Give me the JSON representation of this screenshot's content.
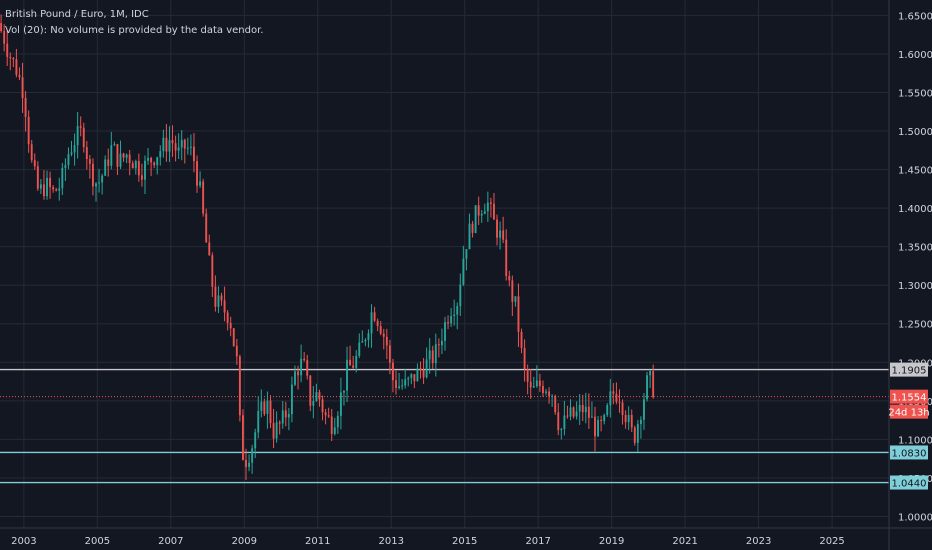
{
  "header": {
    "title": "British Pound / Euro, 1M, IDC",
    "volume_note": "Vol (20): No volume is provided by the data vendor."
  },
  "colors": {
    "background": "#131722",
    "grid": "#262a36",
    "text": "#d1d4dc",
    "up": "#26a69a",
    "down": "#ef5350",
    "line_white": "#c8c8cc",
    "line_cyan": "#7fcfd8",
    "price_line": "#ef5350"
  },
  "price_labels": {
    "resistance": "1.1905",
    "current": "1.1554",
    "countdown": "24d 13h",
    "support_1": "1.0830",
    "support_2": "1.0440"
  },
  "chart_data": {
    "type": "candlestick",
    "title": "British Pound / Euro, 1M, IDC",
    "x_range": [
      2002.35,
      2026.55
    ],
    "ylim": [
      0.985,
      1.67
    ],
    "x_ticks": [
      {
        "value": 2003,
        "label": "2003"
      },
      {
        "value": 2005,
        "label": "2005"
      },
      {
        "value": 2007,
        "label": "2007"
      },
      {
        "value": 2009,
        "label": "2009"
      },
      {
        "value": 2011,
        "label": "2011"
      },
      {
        "value": 2013,
        "label": "2013"
      },
      {
        "value": 2015,
        "label": "2015"
      },
      {
        "value": 2017,
        "label": "2017"
      },
      {
        "value": 2019,
        "label": "2019"
      },
      {
        "value": 2021,
        "label": "2021"
      },
      {
        "value": 2023,
        "label": "2023"
      },
      {
        "value": 2025,
        "label": "2025"
      }
    ],
    "y_ticks": [
      {
        "value": 1.0,
        "label": "1.0000"
      },
      {
        "value": 1.05,
        "label": "1.0500"
      },
      {
        "value": 1.1,
        "label": "1.1000"
      },
      {
        "value": 1.15,
        "label": "1.1500"
      },
      {
        "value": 1.2,
        "label": "1.2000"
      },
      {
        "value": 1.25,
        "label": "1.2500"
      },
      {
        "value": 1.3,
        "label": "1.3000"
      },
      {
        "value": 1.35,
        "label": "1.3500"
      },
      {
        "value": 1.4,
        "label": "1.4000"
      },
      {
        "value": 1.45,
        "label": "1.4500"
      },
      {
        "value": 1.5,
        "label": "1.5000"
      },
      {
        "value": 1.55,
        "label": "1.5500"
      },
      {
        "value": 1.6,
        "label": "1.6000"
      },
      {
        "value": 1.65,
        "label": "1.6500"
      }
    ],
    "horizontal_lines": [
      {
        "value": 1.1905,
        "style": "solid",
        "color": "#c8c8cc"
      },
      {
        "value": 1.1554,
        "style": "dotted",
        "color": "#ef5350"
      },
      {
        "value": 1.083,
        "style": "solid",
        "color": "#7fcfd8"
      },
      {
        "value": 1.044,
        "style": "solid",
        "color": "#7fcfd8"
      }
    ],
    "anchor_closes": [
      [
        2002.4,
        1.63
      ],
      [
        2002.6,
        1.6
      ],
      [
        2002.8,
        1.58
      ],
      [
        2003.0,
        1.55
      ],
      [
        2003.2,
        1.46
      ],
      [
        2003.4,
        1.42
      ],
      [
        2003.6,
        1.43
      ],
      [
        2003.8,
        1.42
      ],
      [
        2004.0,
        1.43
      ],
      [
        2004.2,
        1.47
      ],
      [
        2004.4,
        1.49
      ],
      [
        2004.6,
        1.5
      ],
      [
        2004.8,
        1.45
      ],
      [
        2005.0,
        1.43
      ],
      [
        2005.2,
        1.45
      ],
      [
        2005.4,
        1.48
      ],
      [
        2005.6,
        1.46
      ],
      [
        2005.8,
        1.47
      ],
      [
        2006.0,
        1.46
      ],
      [
        2006.2,
        1.45
      ],
      [
        2006.4,
        1.46
      ],
      [
        2006.6,
        1.47
      ],
      [
        2006.8,
        1.48
      ],
      [
        2007.0,
        1.49
      ],
      [
        2007.2,
        1.47
      ],
      [
        2007.4,
        1.48
      ],
      [
        2007.6,
        1.47
      ],
      [
        2007.8,
        1.42
      ],
      [
        2008.0,
        1.34
      ],
      [
        2008.2,
        1.28
      ],
      [
        2008.4,
        1.27
      ],
      [
        2008.6,
        1.26
      ],
      [
        2008.8,
        1.2
      ],
      [
        2008.9,
        1.1
      ],
      [
        2009.0,
        1.07
      ],
      [
        2009.2,
        1.09
      ],
      [
        2009.4,
        1.13
      ],
      [
        2009.6,
        1.15
      ],
      [
        2009.8,
        1.11
      ],
      [
        2010.0,
        1.12
      ],
      [
        2010.2,
        1.14
      ],
      [
        2010.4,
        1.19
      ],
      [
        2010.6,
        1.2
      ],
      [
        2010.8,
        1.15
      ],
      [
        2011.0,
        1.16
      ],
      [
        2011.2,
        1.13
      ],
      [
        2011.4,
        1.12
      ],
      [
        2011.6,
        1.15
      ],
      [
        2011.8,
        1.19
      ],
      [
        2012.0,
        1.2
      ],
      [
        2012.2,
        1.22
      ],
      [
        2012.5,
        1.27
      ],
      [
        2012.7,
        1.25
      ],
      [
        2012.9,
        1.22
      ],
      [
        2013.0,
        1.18
      ],
      [
        2013.2,
        1.17
      ],
      [
        2013.4,
        1.17
      ],
      [
        2013.6,
        1.18
      ],
      [
        2013.8,
        1.19
      ],
      [
        2014.0,
        1.2
      ],
      [
        2014.2,
        1.21
      ],
      [
        2014.4,
        1.24
      ],
      [
        2014.6,
        1.27
      ],
      [
        2014.8,
        1.28
      ],
      [
        2015.0,
        1.35
      ],
      [
        2015.2,
        1.38
      ],
      [
        2015.4,
        1.4
      ],
      [
        2015.6,
        1.41
      ],
      [
        2015.8,
        1.38
      ],
      [
        2016.0,
        1.36
      ],
      [
        2016.2,
        1.3
      ],
      [
        2016.4,
        1.27
      ],
      [
        2016.6,
        1.19
      ],
      [
        2016.8,
        1.16
      ],
      [
        2017.0,
        1.17
      ],
      [
        2017.2,
        1.17
      ],
      [
        2017.4,
        1.16
      ],
      [
        2017.6,
        1.11
      ],
      [
        2017.8,
        1.13
      ],
      [
        2018.0,
        1.13
      ],
      [
        2018.2,
        1.14
      ],
      [
        2018.4,
        1.13
      ],
      [
        2018.6,
        1.11
      ],
      [
        2018.8,
        1.12
      ],
      [
        2019.0,
        1.16
      ],
      [
        2019.2,
        1.16
      ],
      [
        2019.4,
        1.13
      ],
      [
        2019.6,
        1.1
      ],
      [
        2019.8,
        1.14
      ],
      [
        2020.0,
        1.18
      ],
      [
        2020.2,
        1.16
      ]
    ]
  }
}
